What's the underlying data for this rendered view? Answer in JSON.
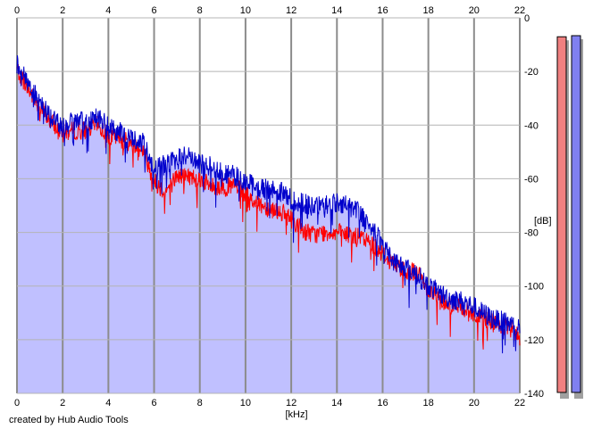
{
  "chart_data": {
    "type": "area",
    "xlabel": "[kHz]",
    "ylabel": "[dB]",
    "xlim": [
      0,
      22
    ],
    "ylim": [
      -140,
      0
    ],
    "x_ticks": [
      "0",
      "2",
      "4",
      "6",
      "8",
      "10",
      "12",
      "14",
      "16",
      "18",
      "20",
      "22"
    ],
    "y_ticks": [
      "0",
      "-20",
      "-40",
      "-60",
      "-80",
      "-100",
      "-120",
      "-140"
    ],
    "grid": true,
    "x": [
      0,
      0.5,
      1,
      1.5,
      2,
      2.5,
      3,
      3.5,
      4,
      4.5,
      5,
      5.5,
      6,
      6.5,
      7,
      7.5,
      8,
      8.5,
      9,
      9.5,
      10,
      10.5,
      11,
      11.5,
      12,
      12.5,
      13,
      13.5,
      14,
      14.5,
      15,
      15.5,
      16,
      16.5,
      17,
      17.5,
      18,
      18.5,
      19,
      19.5,
      20,
      20.5,
      21,
      21.5,
      22
    ],
    "series": [
      {
        "values": [
          -20,
          -28,
          -34,
          -40,
          -44,
          -43,
          -43,
          -41,
          -45,
          -46,
          -48,
          -50,
          -62,
          -66,
          -60,
          -60,
          -61,
          -64,
          -64,
          -64,
          -67,
          -70,
          -72,
          -73,
          -76,
          -80,
          -82,
          -81,
          -81,
          -82,
          -83,
          -85,
          -89,
          -93,
          -95,
          -96,
          -102,
          -106,
          -108,
          -109,
          -112,
          -113,
          -116,
          -117,
          -120
        ],
        "color": "#ff0000"
      },
      {
        "values": [
          -18,
          -26,
          -33,
          -38,
          -42,
          -40,
          -40,
          -38,
          -42,
          -44,
          -46,
          -48,
          -57,
          -56,
          -54,
          -52,
          -56,
          -56,
          -59,
          -60,
          -62,
          -65,
          -65,
          -66,
          -69,
          -70,
          -72,
          -71,
          -70,
          -71,
          -74,
          -79,
          -86,
          -92,
          -94,
          -97,
          -101,
          -104,
          -106,
          -107,
          -109,
          -112,
          -114,
          -115,
          -117
        ],
        "color": "#0000cc"
      }
    ],
    "fill_color": "#c0c0ff",
    "meters": [
      {
        "level": 0.975,
        "color": "#f08080"
      },
      {
        "level": 0.978,
        "color": "#8080f0"
      }
    ]
  },
  "credit": "created by Hub Audio Tools"
}
